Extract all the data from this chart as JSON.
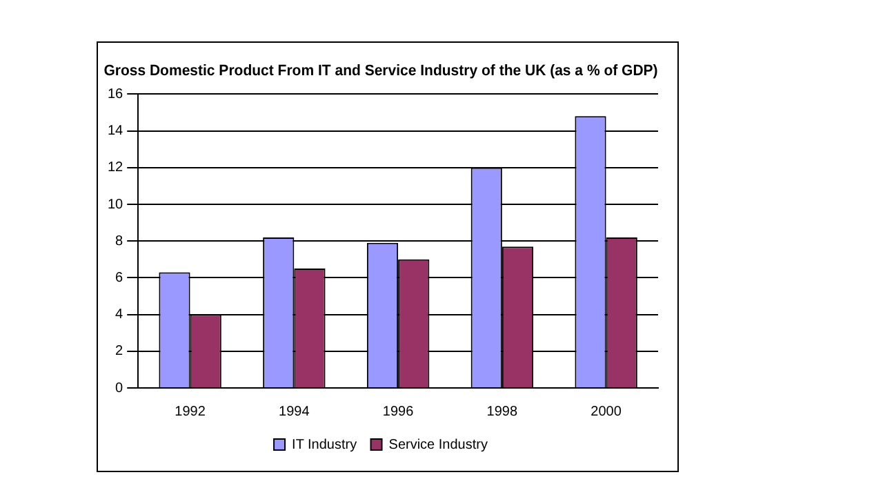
{
  "chart_data": {
    "type": "bar",
    "title": "Gross Domestic Product From IT and Service Industry of the UK (as a % of GDP)",
    "categories": [
      "1992",
      "1994",
      "1996",
      "1998",
      "2000"
    ],
    "series": [
      {
        "name": "IT Industry",
        "color": "#9999ff",
        "values": [
          6.3,
          8.2,
          7.9,
          12,
          14.8
        ]
      },
      {
        "name": "Service Industry",
        "color": "#993366",
        "values": [
          4,
          6.5,
          7,
          7.7,
          8.2
        ]
      }
    ],
    "ylim": [
      0,
      16
    ],
    "yticks": [
      0,
      2,
      4,
      6,
      8,
      10,
      12,
      14,
      16
    ],
    "grid": "y",
    "legend": "bottom"
  }
}
